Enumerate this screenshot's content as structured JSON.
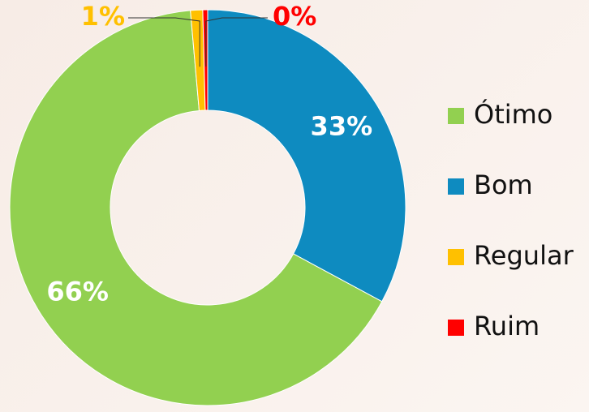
{
  "chart_data": {
    "type": "donut",
    "categories": [
      "Ótimo",
      "Bom",
      "Regular",
      "Ruim"
    ],
    "values": [
      66,
      33,
      1,
      0.4
    ],
    "value_labels": [
      "66%",
      "33%",
      "1%",
      "0%"
    ],
    "colors": [
      "#92d050",
      "#0e8bc0",
      "#ffc000",
      "#ff0000"
    ],
    "legend": "right"
  }
}
